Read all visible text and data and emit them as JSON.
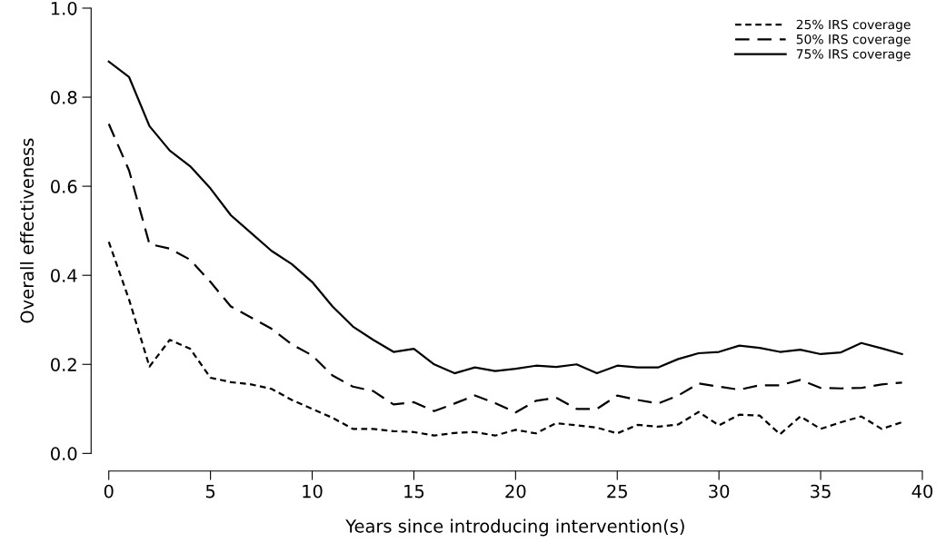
{
  "chart_data": {
    "type": "line",
    "xlabel": "Years since introducing intervention(s)",
    "ylabel": "Overall effectiveness",
    "x": [
      0,
      1,
      2,
      3,
      4,
      5,
      6,
      7,
      8,
      9,
      10,
      11,
      12,
      13,
      14,
      15,
      16,
      17,
      18,
      19,
      20,
      21,
      22,
      23,
      24,
      25,
      26,
      27,
      28,
      29,
      30,
      31,
      32,
      33,
      34,
      35,
      36,
      37,
      38,
      39
    ],
    "series": [
      {
        "name": "25% IRS coverage",
        "color": "#000000",
        "line_style": "dotted",
        "values": [
          0.475,
          0.345,
          0.195,
          0.255,
          0.235,
          0.17,
          0.16,
          0.155,
          0.145,
          0.12,
          0.1,
          0.08,
          0.055,
          0.055,
          0.05,
          0.048,
          0.04,
          0.046,
          0.048,
          0.04,
          0.053,
          0.045,
          0.068,
          0.063,
          0.058,
          0.045,
          0.064,
          0.06,
          0.065,
          0.093,
          0.063,
          0.087,
          0.085,
          0.043,
          0.083,
          0.055,
          0.07,
          0.083,
          0.055,
          0.07
        ]
      },
      {
        "name": "50% IRS coverage",
        "color": "#000000",
        "line_style": "dashed",
        "values": [
          0.74,
          0.635,
          0.47,
          0.46,
          0.435,
          0.385,
          0.33,
          0.305,
          0.28,
          0.245,
          0.22,
          0.175,
          0.15,
          0.14,
          0.11,
          0.115,
          0.095,
          0.112,
          0.13,
          0.113,
          0.092,
          0.118,
          0.125,
          0.1,
          0.1,
          0.13,
          0.12,
          0.112,
          0.13,
          0.157,
          0.15,
          0.143,
          0.153,
          0.153,
          0.165,
          0.147,
          0.146,
          0.147,
          0.155,
          0.159
        ]
      },
      {
        "name": "75% IRS coverage",
        "color": "#000000",
        "line_style": "solid",
        "values": [
          0.88,
          0.845,
          0.735,
          0.68,
          0.645,
          0.595,
          0.535,
          0.495,
          0.455,
          0.425,
          0.385,
          0.33,
          0.285,
          0.255,
          0.228,
          0.235,
          0.2,
          0.18,
          0.193,
          0.185,
          0.19,
          0.197,
          0.194,
          0.2,
          0.18,
          0.197,
          0.193,
          0.193,
          0.212,
          0.225,
          0.228,
          0.242,
          0.237,
          0.228,
          0.233,
          0.223,
          0.227,
          0.248,
          0.236,
          0.223
        ]
      }
    ],
    "xlim": [
      0,
      40
    ],
    "xticks": [
      0,
      5,
      10,
      15,
      20,
      25,
      30,
      35,
      40
    ],
    "ylim": [
      0,
      1.0
    ],
    "yticks": [
      {
        "value": 0,
        "label": "0.0"
      },
      {
        "value": 0.2,
        "label": "0.2"
      },
      {
        "value": 0.4,
        "label": "0.4"
      },
      {
        "value": 0.6,
        "label": "0.6"
      },
      {
        "value": 0.8,
        "label": "0.8"
      },
      {
        "value": 1.0,
        "label": "1.0"
      }
    ],
    "legend": "top right",
    "grid": false
  }
}
